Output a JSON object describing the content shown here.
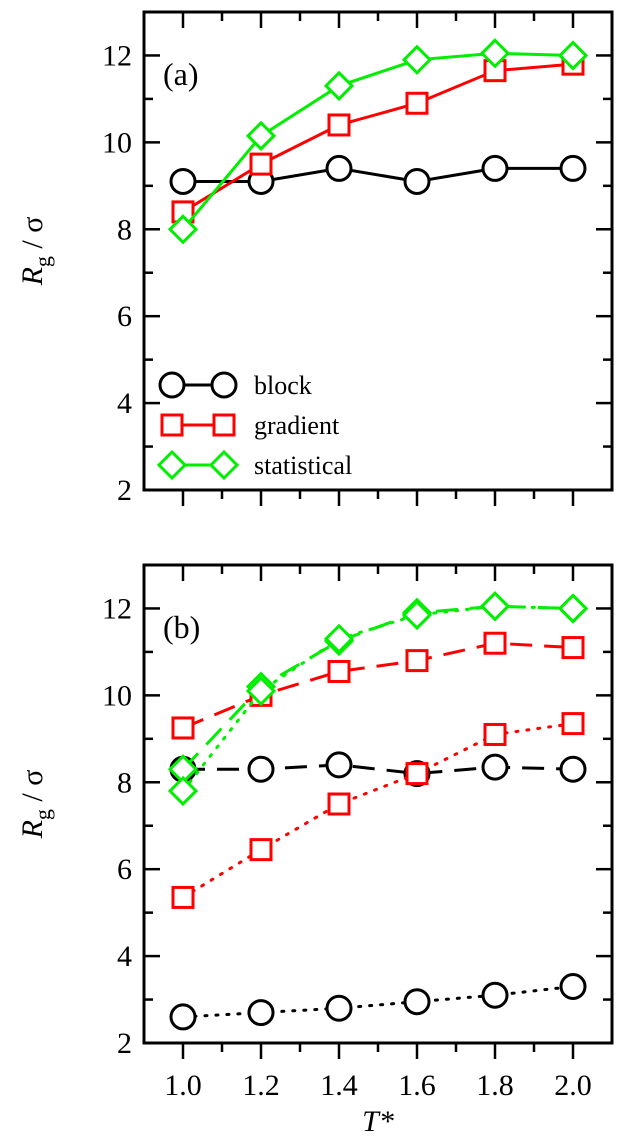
{
  "chart_data": [
    {
      "type": "line",
      "panel_label": "(a)",
      "xlabel": "",
      "ylabel": "R_g / σ",
      "ylabel_parts": {
        "main": "R",
        "sub": "g",
        "rest": " / σ"
      },
      "xlim": [
        0.9,
        2.1
      ],
      "ylim": [
        2,
        13
      ],
      "yticks": [
        2,
        4,
        6,
        8,
        10,
        12
      ],
      "ytick_labels": [
        "2",
        "4",
        "6",
        "8",
        "10",
        "12"
      ],
      "xticks": [
        1.0,
        1.2,
        1.4,
        1.6,
        1.8,
        2.0
      ],
      "x": [
        1.0,
        1.2,
        1.4,
        1.6,
        1.8,
        2.0
      ],
      "legend": {
        "placement": "bottom-left",
        "entries": [
          "block",
          "gradient",
          "statistical"
        ]
      },
      "series": [
        {
          "name": "block",
          "color": "#000000",
          "marker": "circle",
          "dash": "solid",
          "values": [
            9.1,
            9.1,
            9.4,
            9.1,
            9.4,
            9.4
          ]
        },
        {
          "name": "gradient",
          "color": "#ff0000",
          "marker": "square",
          "dash": "solid",
          "values": [
            8.4,
            9.5,
            10.4,
            10.9,
            11.65,
            11.8
          ]
        },
        {
          "name": "statistical",
          "color": "#00ee00",
          "marker": "diamond",
          "dash": "solid",
          "values": [
            8.0,
            10.15,
            11.3,
            11.9,
            12.05,
            12.0
          ]
        }
      ]
    },
    {
      "type": "line",
      "panel_label": "(b)",
      "xlabel": "T*",
      "ylabel": "R_g / σ",
      "ylabel_parts": {
        "main": "R",
        "sub": "g",
        "rest": " / σ"
      },
      "xlim": [
        0.9,
        2.1
      ],
      "ylim": [
        2,
        13
      ],
      "yticks": [
        2,
        4,
        6,
        8,
        10,
        12
      ],
      "ytick_labels": [
        "2",
        "4",
        "6",
        "8",
        "10",
        "12"
      ],
      "xticks": [
        1.0,
        1.2,
        1.4,
        1.6,
        1.8,
        2.0
      ],
      "xtick_labels": [
        "1.0",
        "1.2",
        "1.4",
        "1.6",
        "1.8",
        "2.0"
      ],
      "x": [
        1.0,
        1.2,
        1.4,
        1.6,
        1.8,
        2.0
      ],
      "series": [
        {
          "color": "#000000",
          "marker": "circle",
          "dash": "dashed",
          "values": [
            8.3,
            8.3,
            8.4,
            8.2,
            8.35,
            8.3
          ]
        },
        {
          "color": "#000000",
          "marker": "circle",
          "dash": "dotted",
          "values": [
            2.6,
            2.7,
            2.8,
            2.95,
            3.1,
            3.3
          ]
        },
        {
          "color": "#ff0000",
          "marker": "square",
          "dash": "dashed",
          "values": [
            9.25,
            10.0,
            10.55,
            10.8,
            11.2,
            11.1
          ]
        },
        {
          "color": "#ff0000",
          "marker": "square",
          "dash": "dotted",
          "values": [
            5.35,
            6.45,
            7.5,
            8.2,
            9.1,
            9.35
          ]
        },
        {
          "color": "#00ee00",
          "marker": "diamond",
          "dash": "dashed",
          "values": [
            8.3,
            10.2,
            11.25,
            11.9,
            12.05,
            12.0
          ]
        },
        {
          "color": "#00ee00",
          "marker": "diamond",
          "dash": "dotted",
          "values": [
            7.8,
            10.1,
            11.3,
            11.85,
            12.05,
            12.0
          ]
        }
      ]
    }
  ]
}
